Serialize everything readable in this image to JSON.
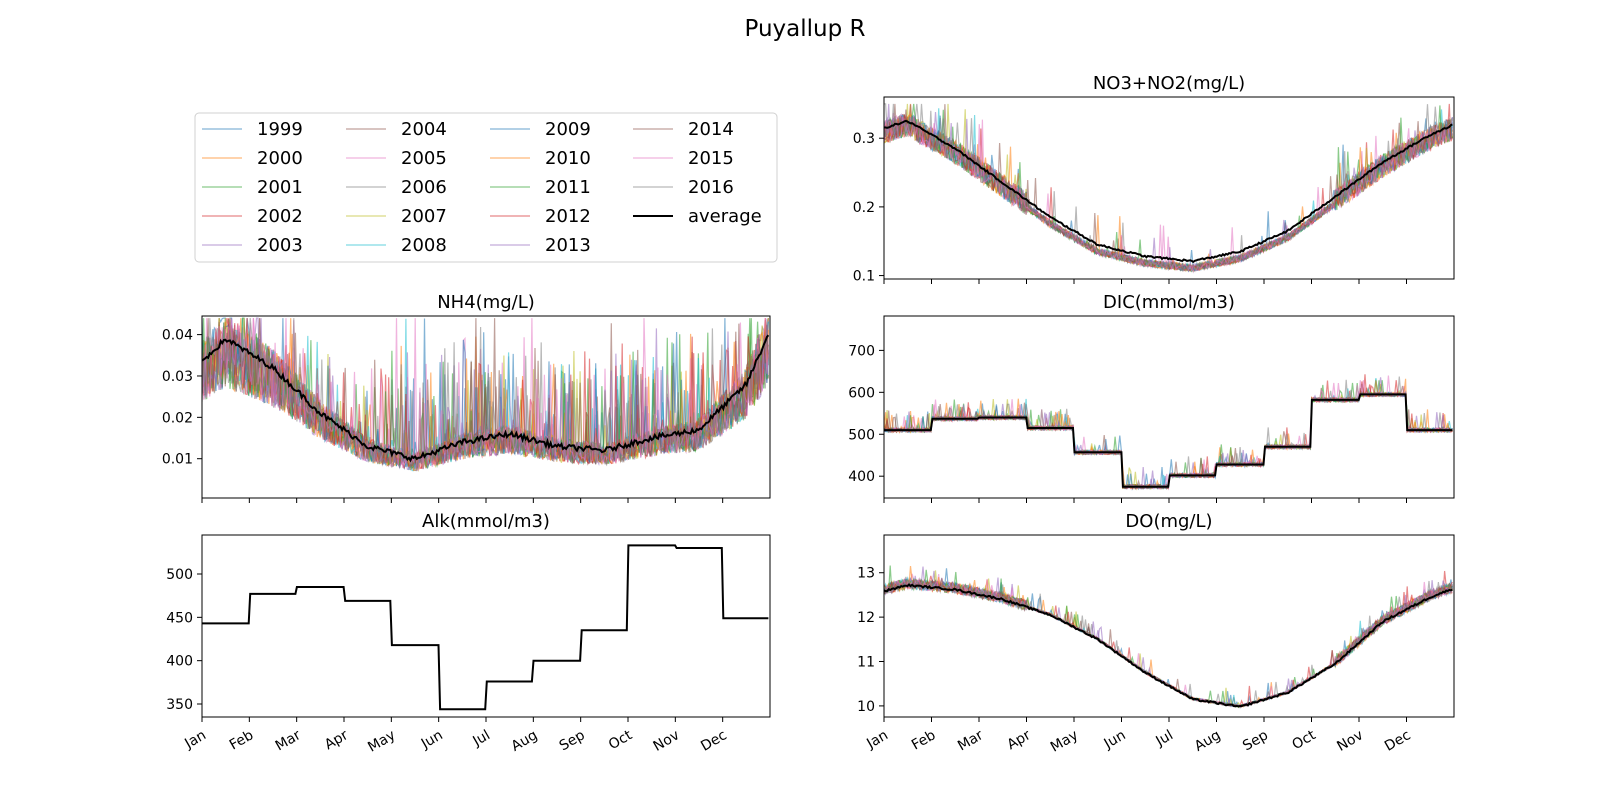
{
  "figure": {
    "title": "Puyallup R",
    "legend": {
      "items": [
        "1999",
        "2000",
        "2001",
        "2002",
        "2003",
        "2004",
        "2005",
        "2006",
        "2007",
        "2008",
        "2009",
        "2010",
        "2011",
        "2012",
        "2013",
        "2014",
        "2015",
        "2016",
        "average"
      ],
      "columns": 4
    }
  },
  "colors": {
    "series_cycle": [
      "#1f77b4",
      "#ff7f0e",
      "#2ca02c",
      "#d62728",
      "#9467bd",
      "#8c564b",
      "#e377c2",
      "#7f7f7f",
      "#bcbd22",
      "#17becf"
    ],
    "average": "#000000"
  },
  "chart_data": [
    {
      "type": "line",
      "title": "NO3+NO2(mg/L)",
      "months": [
        "Jan",
        "Feb",
        "Mar",
        "Apr",
        "May",
        "Jun",
        "Jul",
        "Aug",
        "Sep",
        "Oct",
        "Nov",
        "Dec"
      ],
      "show_month_labels": false,
      "ylim": [
        0.095,
        0.36
      ],
      "yticks": [
        0.1,
        0.2,
        0.3
      ],
      "ytick_labels": [
        "0.1",
        "0.2",
        "0.3"
      ],
      "series_names": [
        "1999",
        "2000",
        "2001",
        "2002",
        "2003",
        "2004",
        "2005",
        "2006",
        "2007",
        "2008",
        "2009",
        "2010",
        "2011",
        "2012",
        "2013",
        "2014",
        "2015",
        "2016"
      ],
      "average_monthly": [
        0.325,
        0.285,
        0.235,
        0.185,
        0.145,
        0.128,
        0.121,
        0.135,
        0.165,
        0.215,
        0.265,
        0.305
      ],
      "average_year_end": 0.32,
      "cap": 0.35
    },
    {
      "type": "line",
      "title": "NH4(mg/L)",
      "months": [
        "Jan",
        "Feb",
        "Mar",
        "Apr",
        "May",
        "Jun",
        "Jul",
        "Aug",
        "Sep",
        "Oct",
        "Nov",
        "Dec"
      ],
      "show_month_labels": false,
      "ylim": [
        0.0005,
        0.0445
      ],
      "yticks": [
        0.01,
        0.02,
        0.03,
        0.04
      ],
      "ytick_labels": [
        "0.01",
        "0.02",
        "0.03",
        "0.04"
      ],
      "series_names": [
        "1999",
        "2000",
        "2001",
        "2002",
        "2003",
        "2004",
        "2005",
        "2006",
        "2007",
        "2008",
        "2009",
        "2010",
        "2011",
        "2012",
        "2013",
        "2014",
        "2015",
        "2016"
      ],
      "average_monthly": [
        0.039,
        0.032,
        0.021,
        0.013,
        0.01,
        0.014,
        0.016,
        0.013,
        0.012,
        0.015,
        0.017,
        0.028
      ],
      "average_year_end": 0.041,
      "cap": 0.044
    },
    {
      "type": "line",
      "title": "DIC(mmol/m3)",
      "months": [
        "Jan",
        "Feb",
        "Mar",
        "Apr",
        "May",
        "Jun",
        "Jul",
        "Aug",
        "Sep",
        "Oct",
        "Nov",
        "Dec"
      ],
      "show_month_labels": false,
      "ylim": [
        348,
        782
      ],
      "yticks": [
        400,
        500,
        600,
        700
      ],
      "ytick_labels": [
        "400",
        "500",
        "600",
        "700"
      ],
      "series_names": [
        "1999",
        "2000",
        "2001",
        "2002",
        "2003",
        "2004",
        "2005",
        "2006",
        "2007",
        "2008",
        "2009",
        "2010",
        "2011",
        "2012",
        "2013",
        "2014",
        "2015",
        "2016"
      ],
      "average_monthly": [
        510,
        537,
        540,
        515,
        457,
        375,
        402,
        428,
        470,
        582,
        595,
        510
      ],
      "step": true
    },
    {
      "type": "line",
      "title": "Alk(mmol/m3)",
      "months": [
        "Jan",
        "Feb",
        "Mar",
        "Apr",
        "May",
        "Jun",
        "Jul",
        "Aug",
        "Sep",
        "Oct",
        "Nov",
        "Dec"
      ],
      "show_month_labels": true,
      "ylim": [
        335,
        545
      ],
      "yticks": [
        350,
        400,
        450,
        500
      ],
      "ytick_labels": [
        "350",
        "400",
        "450",
        "500"
      ],
      "series_names": [],
      "average_monthly": [
        443,
        477,
        485,
        469,
        418,
        344,
        376,
        400,
        435,
        533,
        530,
        449
      ],
      "step": true
    },
    {
      "type": "line",
      "title": "DO(mg/L)",
      "months": [
        "Jan",
        "Feb",
        "Mar",
        "Apr",
        "May",
        "Jun",
        "Jul",
        "Aug",
        "Sep",
        "Oct",
        "Nov",
        "Dec"
      ],
      "show_month_labels": true,
      "ylim": [
        9.75,
        13.85
      ],
      "yticks": [
        10,
        11,
        12,
        13
      ],
      "ytick_labels": [
        "10",
        "11",
        "12",
        "13"
      ],
      "series_names": [
        "1999",
        "2000",
        "2001",
        "2002",
        "2003",
        "2004",
        "2005",
        "2006",
        "2007",
        "2008",
        "2009",
        "2010",
        "2011",
        "2012",
        "2013",
        "2014",
        "2015",
        "2016"
      ],
      "average_monthly": [
        12.72,
        12.62,
        12.4,
        12.05,
        11.5,
        10.75,
        10.15,
        9.98,
        10.3,
        10.95,
        11.9,
        12.45
      ],
      "average_year_end": 12.65
    }
  ]
}
